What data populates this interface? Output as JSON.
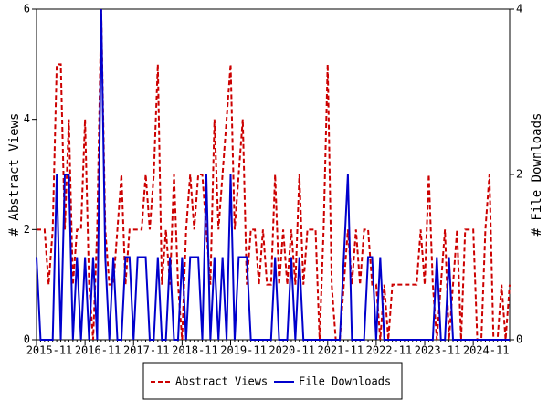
{
  "chart_data": {
    "type": "line",
    "y_label": "# Abstract Views",
    "y2_label": "# File Downloads",
    "categories": [
      "2015-11",
      null,
      null,
      null,
      null,
      null,
      null,
      null,
      null,
      null,
      null,
      null,
      "2016-11",
      null,
      null,
      null,
      null,
      null,
      null,
      null,
      null,
      null,
      null,
      null,
      "2017-11",
      null,
      null,
      null,
      null,
      null,
      null,
      null,
      null,
      null,
      null,
      null,
      "2018-11",
      null,
      null,
      null,
      null,
      null,
      null,
      null,
      null,
      null,
      null,
      null,
      "2019-11",
      null,
      null,
      null,
      null,
      null,
      null,
      null,
      null,
      null,
      null,
      null,
      "2020-11",
      null,
      null,
      null,
      null,
      null,
      null,
      null,
      null,
      null,
      null,
      null,
      "2021-11",
      null,
      null,
      null,
      null,
      null,
      null,
      null,
      null,
      null,
      null,
      null,
      "2022-11",
      null,
      null,
      null,
      null,
      null,
      null,
      null,
      null,
      null,
      null,
      null,
      "2023-11",
      null,
      null,
      null,
      null,
      null,
      null,
      null,
      null,
      null,
      null,
      null,
      "2024-11",
      null,
      null,
      null,
      null,
      null,
      null,
      null,
      null,
      null
    ],
    "series": [
      {
        "name": "Abstract Views",
        "color": "#cc0000",
        "dashed": true,
        "values": [
          2,
          2,
          2,
          1,
          2,
          5,
          5,
          2,
          4,
          1,
          2,
          2,
          4,
          1,
          0,
          2,
          6,
          2,
          1,
          1,
          2,
          3,
          1,
          2,
          2,
          2,
          2,
          3,
          2,
          3,
          5,
          1,
          2,
          1,
          3,
          1,
          0,
          2,
          3,
          2,
          3,
          3,
          2,
          1,
          4,
          2,
          3,
          4,
          5,
          2,
          3,
          4,
          1,
          2,
          2,
          1,
          2,
          1,
          1,
          3,
          1,
          2,
          1,
          2,
          1,
          3,
          1,
          2,
          2,
          2,
          0,
          2,
          5,
          1,
          0,
          0,
          1,
          2,
          1,
          2,
          1,
          2,
          2,
          1,
          1,
          0,
          1,
          0,
          1,
          1,
          1,
          1,
          1,
          1,
          1,
          2,
          1,
          3,
          1,
          0,
          1,
          2,
          0,
          1,
          2,
          0,
          2,
          2,
          2,
          0,
          0,
          2,
          3,
          0,
          0,
          1,
          0,
          1
        ]
      },
      {
        "name": "File Downloads",
        "color": "#0000cc",
        "axis": "y2",
        "values": [
          1,
          0,
          0,
          0,
          0,
          2,
          0,
          2,
          2,
          0,
          1,
          0,
          1,
          0,
          1,
          0,
          4,
          1,
          0,
          1,
          0,
          0,
          1,
          1,
          0,
          1,
          1,
          1,
          0,
          0,
          1,
          0,
          0,
          1,
          0,
          0,
          1,
          0,
          1,
          1,
          1,
          0,
          2,
          0,
          1,
          0,
          1,
          0,
          2,
          0,
          1,
          1,
          1,
          0,
          0,
          0,
          0,
          0,
          0,
          1,
          0,
          0,
          0,
          1,
          0,
          1,
          0,
          0,
          0,
          0,
          0,
          0,
          0,
          0,
          0,
          0,
          1,
          2,
          0,
          0,
          0,
          0,
          1,
          1,
          0,
          1,
          0,
          0,
          0,
          0,
          0,
          0,
          0,
          0,
          0,
          0,
          0,
          0,
          0,
          1,
          0,
          0,
          1,
          0,
          0,
          0,
          0,
          0,
          0,
          0,
          0,
          0,
          0,
          0,
          0,
          0,
          0,
          0
        ]
      }
    ],
    "ylim": [
      0,
      6
    ],
    "yticks": [
      0,
      2,
      4,
      6
    ],
    "y2lim": [
      0,
      4
    ],
    "y2ticks": [
      0,
      2,
      4
    ],
    "legend": "bottom"
  }
}
